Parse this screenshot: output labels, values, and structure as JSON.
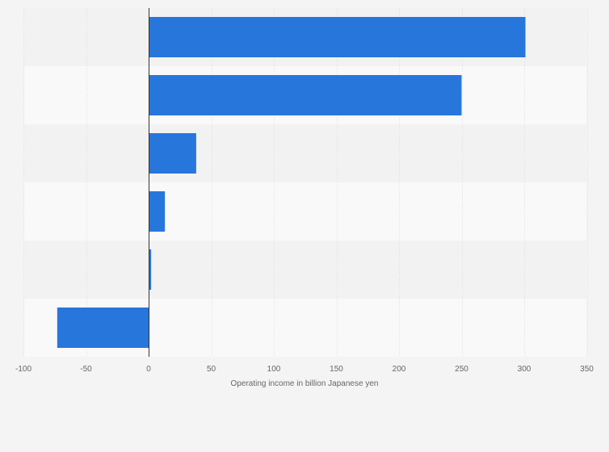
{
  "chart_data": {
    "type": "bar",
    "orientation": "horizontal",
    "title": "",
    "xlabel": "Operating income in billion Japanese yen",
    "ylabel": "",
    "categories": [
      "",
      "",
      "",
      "",
      "",
      ""
    ],
    "values": [
      301,
      250,
      38,
      13,
      2,
      -73
    ],
    "xlim": [
      -100,
      350
    ],
    "xticks": [
      -100,
      -50,
      0,
      50,
      100,
      150,
      200,
      250,
      300,
      350
    ],
    "xtick_labels": [
      "-100",
      "-50",
      "0",
      "50",
      "100",
      "150",
      "200",
      "250",
      "300",
      "350"
    ],
    "grid": true,
    "legend": "none",
    "colors": {
      "bar": "#2776dc",
      "background": "#f4f4f4",
      "band_dark": "#f2f2f2",
      "band_light": "#f9f9f9",
      "grid": "#dddddd",
      "zero_line": "#333333",
      "text": "#666666"
    }
  }
}
